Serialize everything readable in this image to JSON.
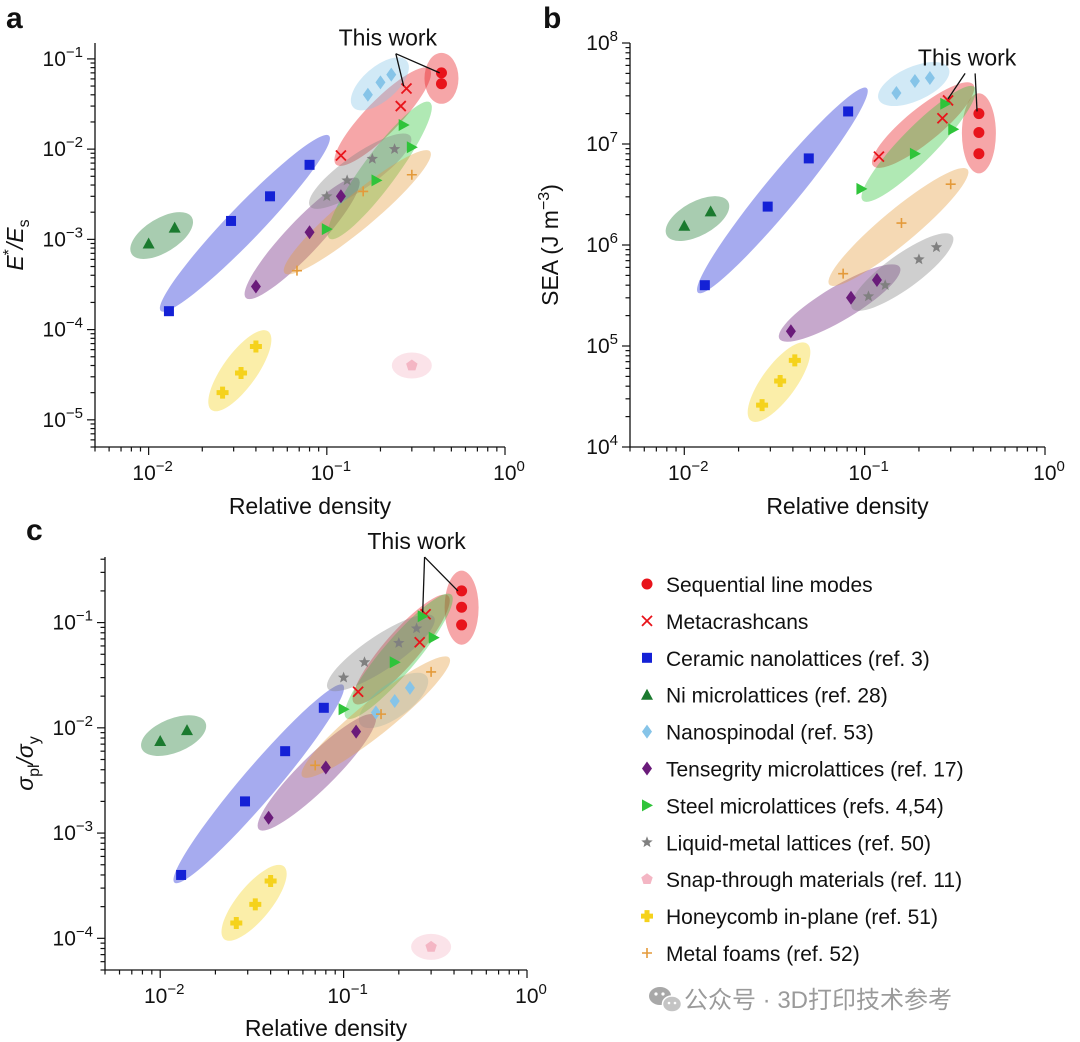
{
  "figure": {
    "watermark": "公众号 · 3D打印技术参考"
  },
  "legend": [
    {
      "key": "seq",
      "label": "Sequential line modes",
      "marker": "circle",
      "color": "#e8141b"
    },
    {
      "key": "meta",
      "label": "Metacrashcans",
      "marker": "x",
      "color": "#e8141b"
    },
    {
      "key": "ceramic",
      "label": "Ceramic nanolattices (ref. 3)",
      "marker": "square",
      "color": "#1421d6"
    },
    {
      "key": "ni",
      "label": "Ni microlattices (ref. 28)",
      "marker": "triangle-up",
      "color": "#1b7a2f"
    },
    {
      "key": "nano",
      "label": "Nanospinodal (ref. 53)",
      "marker": "diamond",
      "color": "#86c4e8"
    },
    {
      "key": "tens",
      "label": "Tensegrity microlattices (ref. 17)",
      "marker": "diamond",
      "color": "#6a1b7a"
    },
    {
      "key": "steel",
      "label": "Steel microlattices (refs. 4,54)",
      "marker": "triangle-right",
      "color": "#2fc43a"
    },
    {
      "key": "liquid",
      "label": "Liquid-metal lattices (ref. 50)",
      "marker": "star",
      "color": "#808080"
    },
    {
      "key": "snap",
      "label": "Snap-through materials (ref. 11)",
      "marker": "pentagon",
      "color": "#f4b6c4"
    },
    {
      "key": "honey",
      "label": "Honeycomb in-plane (ref. 51)",
      "marker": "plus-bold",
      "color": "#f5d21c"
    },
    {
      "key": "foam",
      "label": "Metal foams (ref. 52)",
      "marker": "plus",
      "color": "#e49a3a"
    }
  ],
  "chart_data": [
    {
      "panel": "a",
      "type": "scatter",
      "xscale": "log",
      "yscale": "log",
      "xlim": [
        0.005,
        1
      ],
      "ylim": [
        5e-06,
        0.15
      ],
      "xlabel": "Relative density",
      "ylabel_main": "E",
      "ylabel_sup": "*",
      "ylabel_mid": "/E",
      "ylabel_sub": "s",
      "xticks": [
        {
          "value": 0.01,
          "base": "10",
          "exp": "−2"
        },
        {
          "value": 0.1,
          "base": "10",
          "exp": "−1"
        },
        {
          "value": 1,
          "base": "10",
          "exp": "0"
        }
      ],
      "yticks": [
        {
          "value": 1e-05,
          "base": "10",
          "exp": "−5"
        },
        {
          "value": 0.0001,
          "base": "10",
          "exp": "−4"
        },
        {
          "value": 0.001,
          "base": "10",
          "exp": "−3"
        },
        {
          "value": 0.01,
          "base": "10",
          "exp": "−2"
        },
        {
          "value": 0.1,
          "base": "10",
          "exp": "−1"
        }
      ],
      "annotation": {
        "text": "This work",
        "at": [
          0.22,
          0.14
        ],
        "targets": [
          [
            0.27,
            0.05
          ],
          [
            0.43,
            0.07
          ]
        ]
      },
      "series": [
        {
          "key": "seq",
          "points": [
            [
              0.44,
              0.07
            ],
            [
              0.44,
              0.053
            ]
          ]
        },
        {
          "key": "meta",
          "points": [
            [
              0.12,
              0.0085
            ],
            [
              0.26,
              0.03
            ],
            [
              0.28,
              0.047
            ]
          ]
        },
        {
          "key": "ceramic",
          "points": [
            [
              0.013,
              0.00016
            ],
            [
              0.029,
              0.0016
            ],
            [
              0.048,
              0.003
            ],
            [
              0.08,
              0.0067
            ]
          ]
        },
        {
          "key": "ni",
          "points": [
            [
              0.01,
              0.0009
            ],
            [
              0.014,
              0.00135
            ]
          ]
        },
        {
          "key": "nano",
          "points": [
            [
              0.17,
              0.04
            ],
            [
              0.2,
              0.055
            ],
            [
              0.23,
              0.067
            ]
          ]
        },
        {
          "key": "tens",
          "points": [
            [
              0.04,
              0.0003
            ],
            [
              0.08,
              0.0012
            ],
            [
              0.12,
              0.003
            ]
          ]
        },
        {
          "key": "steel",
          "points": [
            [
              0.1,
              0.0013
            ],
            [
              0.19,
              0.0045
            ],
            [
              0.27,
              0.0185
            ],
            [
              0.3,
              0.0105
            ]
          ]
        },
        {
          "key": "liquid",
          "points": [
            [
              0.1,
              0.003
            ],
            [
              0.13,
              0.0045
            ],
            [
              0.18,
              0.0078
            ],
            [
              0.24,
              0.01
            ]
          ]
        },
        {
          "key": "snap",
          "points": [
            [
              0.3,
              4e-05
            ]
          ]
        },
        {
          "key": "honey",
          "points": [
            [
              0.026,
              2e-05
            ],
            [
              0.033,
              3.3e-05
            ],
            [
              0.04,
              6.5e-05
            ]
          ]
        },
        {
          "key": "foam",
          "points": [
            [
              0.068,
              0.00045
            ],
            [
              0.16,
              0.0034
            ],
            [
              0.3,
              0.0052
            ]
          ]
        }
      ]
    },
    {
      "panel": "b",
      "type": "scatter",
      "xscale": "log",
      "yscale": "log",
      "xlim": [
        0.005,
        1
      ],
      "ylim": [
        10000,
        100000000
      ],
      "xlabel": "Relative density",
      "ylabel_main": "SEA (J m",
      "ylabel_sup": "−3",
      "ylabel_mid": ")",
      "ylabel_sub": "",
      "xticks": [
        {
          "value": 0.01,
          "base": "10",
          "exp": "−2"
        },
        {
          "value": 0.1,
          "base": "10",
          "exp": "−1"
        },
        {
          "value": 1,
          "base": "10",
          "exp": "0"
        }
      ],
      "yticks": [
        {
          "value": 10000,
          "base": "10",
          "exp": "4"
        },
        {
          "value": 100000,
          "base": "10",
          "exp": "5"
        },
        {
          "value": 1000000,
          "base": "10",
          "exp": "6"
        },
        {
          "value": 10000000,
          "base": "10",
          "exp": "7"
        },
        {
          "value": 100000000,
          "base": "10",
          "exp": "8"
        }
      ],
      "annotation": {
        "text": "This work",
        "at": [
          0.37,
          60000000
        ],
        "targets": [
          [
            0.29,
            28000000
          ],
          [
            0.42,
            21000000
          ]
        ]
      },
      "series": [
        {
          "key": "seq",
          "points": [
            [
              0.43,
              20000000
            ],
            [
              0.43,
              13000000
            ],
            [
              0.43,
              8000000
            ]
          ]
        },
        {
          "key": "meta",
          "points": [
            [
              0.12,
              7500000
            ],
            [
              0.27,
              18000000
            ],
            [
              0.29,
              27000000
            ]
          ]
        },
        {
          "key": "ceramic",
          "points": [
            [
              0.013,
              400000
            ],
            [
              0.029,
              2400000
            ],
            [
              0.049,
              7200000
            ],
            [
              0.081,
              21000000
            ]
          ]
        },
        {
          "key": "ni",
          "points": [
            [
              0.01,
              1550000
            ],
            [
              0.014,
              2150000
            ]
          ]
        },
        {
          "key": "nano",
          "points": [
            [
              0.15,
              32000000
            ],
            [
              0.19,
              42000000
            ],
            [
              0.23,
              45000000
            ]
          ]
        },
        {
          "key": "tens",
          "points": [
            [
              0.039,
              140000
            ],
            [
              0.084,
              300000
            ],
            [
              0.117,
              450000
            ]
          ]
        },
        {
          "key": "steel",
          "points": [
            [
              0.096,
              3600000
            ],
            [
              0.19,
              8000000
            ],
            [
              0.28,
              25000000
            ],
            [
              0.31,
              14000000
            ]
          ]
        },
        {
          "key": "liquid",
          "points": [
            [
              0.105,
              310000
            ],
            [
              0.13,
              400000
            ],
            [
              0.2,
              720000
            ],
            [
              0.25,
              950000
            ]
          ]
        },
        {
          "key": "honey",
          "points": [
            [
              0.027,
              26000
            ],
            [
              0.034,
              45000
            ],
            [
              0.041,
              72000
            ]
          ]
        },
        {
          "key": "foam",
          "points": [
            [
              0.076,
              520000
            ],
            [
              0.16,
              1650000
            ],
            [
              0.3,
              4000000
            ]
          ]
        }
      ]
    },
    {
      "panel": "c",
      "type": "scatter",
      "xscale": "log",
      "yscale": "log",
      "xlim": [
        0.005,
        1
      ],
      "ylim": [
        5e-05,
        0.42
      ],
      "xlabel": "Relative density",
      "ylabel_main": "σ",
      "ylabel_sup": "",
      "ylabel_mid": "/σ",
      "ylabel_sub": "pl",
      "ylabel_sub2": "y",
      "xticks": [
        {
          "value": 0.01,
          "base": "10",
          "exp": "−2"
        },
        {
          "value": 0.1,
          "base": "10",
          "exp": "−1"
        },
        {
          "value": 1,
          "base": "10",
          "exp": "0"
        }
      ],
      "yticks": [
        {
          "value": 0.0001,
          "base": "10",
          "exp": "−4"
        },
        {
          "value": 0.001,
          "base": "10",
          "exp": "−3"
        },
        {
          "value": 0.01,
          "base": "10",
          "exp": "−2"
        },
        {
          "value": 0.1,
          "base": "10",
          "exp": "−1"
        }
      ],
      "annotation": {
        "text": "This work",
        "at": [
          0.25,
          0.5
        ],
        "targets": [
          [
            0.27,
            0.125
          ],
          [
            0.42,
            0.2
          ]
        ]
      },
      "series": [
        {
          "key": "seq",
          "points": [
            [
              0.44,
              0.2
            ],
            [
              0.44,
              0.14
            ],
            [
              0.44,
              0.095
            ]
          ]
        },
        {
          "key": "meta",
          "points": [
            [
              0.12,
              0.022
            ],
            [
              0.26,
              0.065
            ],
            [
              0.28,
              0.12
            ]
          ]
        },
        {
          "key": "ceramic",
          "points": [
            [
              0.013,
              0.0004
            ],
            [
              0.029,
              0.002
            ],
            [
              0.048,
              0.006
            ],
            [
              0.078,
              0.0155
            ]
          ]
        },
        {
          "key": "ni",
          "points": [
            [
              0.01,
              0.0075
            ],
            [
              0.014,
              0.0095
            ]
          ]
        },
        {
          "key": "nano",
          "points": [
            [
              0.15,
              0.014
            ],
            [
              0.19,
              0.018
            ],
            [
              0.23,
              0.024
            ]
          ]
        },
        {
          "key": "tens",
          "points": [
            [
              0.039,
              0.0014
            ],
            [
              0.08,
              0.0042
            ],
            [
              0.117,
              0.0092
            ]
          ]
        },
        {
          "key": "steel",
          "points": [
            [
              0.1,
              0.015
            ],
            [
              0.19,
              0.042
            ],
            [
              0.27,
              0.115
            ],
            [
              0.31,
              0.072
            ]
          ]
        },
        {
          "key": "liquid",
          "points": [
            [
              0.1,
              0.03
            ],
            [
              0.13,
              0.042
            ],
            [
              0.2,
              0.064
            ],
            [
              0.25,
              0.088
            ]
          ]
        },
        {
          "key": "snap",
          "points": [
            [
              0.3,
              8.3e-05
            ]
          ]
        },
        {
          "key": "honey",
          "points": [
            [
              0.026,
              0.00014
            ],
            [
              0.033,
              0.00021
            ],
            [
              0.04,
              0.00035
            ]
          ]
        },
        {
          "key": "foam",
          "points": [
            [
              0.07,
              0.0044
            ],
            [
              0.16,
              0.0135
            ],
            [
              0.3,
              0.034
            ]
          ]
        }
      ]
    }
  ]
}
